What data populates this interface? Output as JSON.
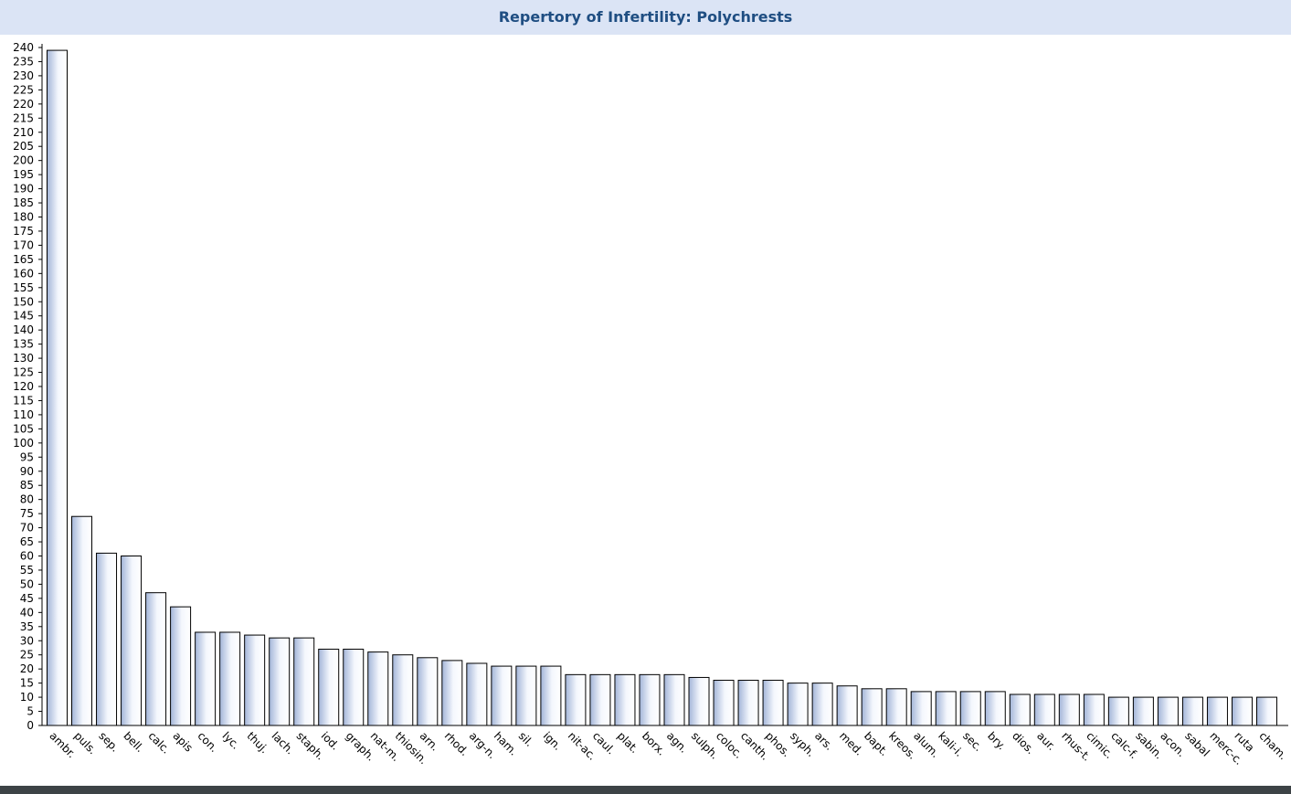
{
  "chart_data": {
    "type": "bar",
    "title": "Repertory of Infertility: Polychrests",
    "xlabel": "",
    "ylabel": "",
    "ylim": [
      0,
      240
    ],
    "ytick_step": 5,
    "grid": false,
    "legend": "none",
    "colors": {
      "bar_edge": "#a9b9d9",
      "bar_center": "#ffffff",
      "bar_stroke": "#000000",
      "title": "#1f4e82",
      "title_bg": "#dbe4f5"
    },
    "categories": [
      "ambr.",
      "puls.",
      "sep.",
      "bell.",
      "calc.",
      "apis",
      "con.",
      "lyc.",
      "thuj.",
      "lach.",
      "staph.",
      "iod.",
      "graph.",
      "nat-m.",
      "thiosin.",
      "arn.",
      "rhod.",
      "arg-n.",
      "ham.",
      "sil.",
      "ign.",
      "nit-ac.",
      "caul.",
      "plat.",
      "borx.",
      "agn.",
      "sulph.",
      "coloc.",
      "canth.",
      "phos.",
      "syph.",
      "ars.",
      "med.",
      "bapt.",
      "kreos.",
      "alum.",
      "kali-i.",
      "sec.",
      "bry.",
      "dios.",
      "aur.",
      "rhus-t.",
      "cimic.",
      "calc-f.",
      "sabin.",
      "acon.",
      "sabal",
      "merc-c.",
      "ruta",
      "cham."
    ],
    "values": [
      239,
      74,
      61,
      60,
      47,
      42,
      33,
      33,
      32,
      31,
      31,
      27,
      27,
      26,
      25,
      24,
      23,
      22,
      21,
      21,
      21,
      18,
      18,
      18,
      18,
      18,
      17,
      16,
      16,
      16,
      15,
      15,
      14,
      13,
      13,
      12,
      12,
      12,
      12,
      11,
      11,
      11,
      11,
      10,
      10,
      10,
      10,
      10,
      10,
      10
    ]
  }
}
